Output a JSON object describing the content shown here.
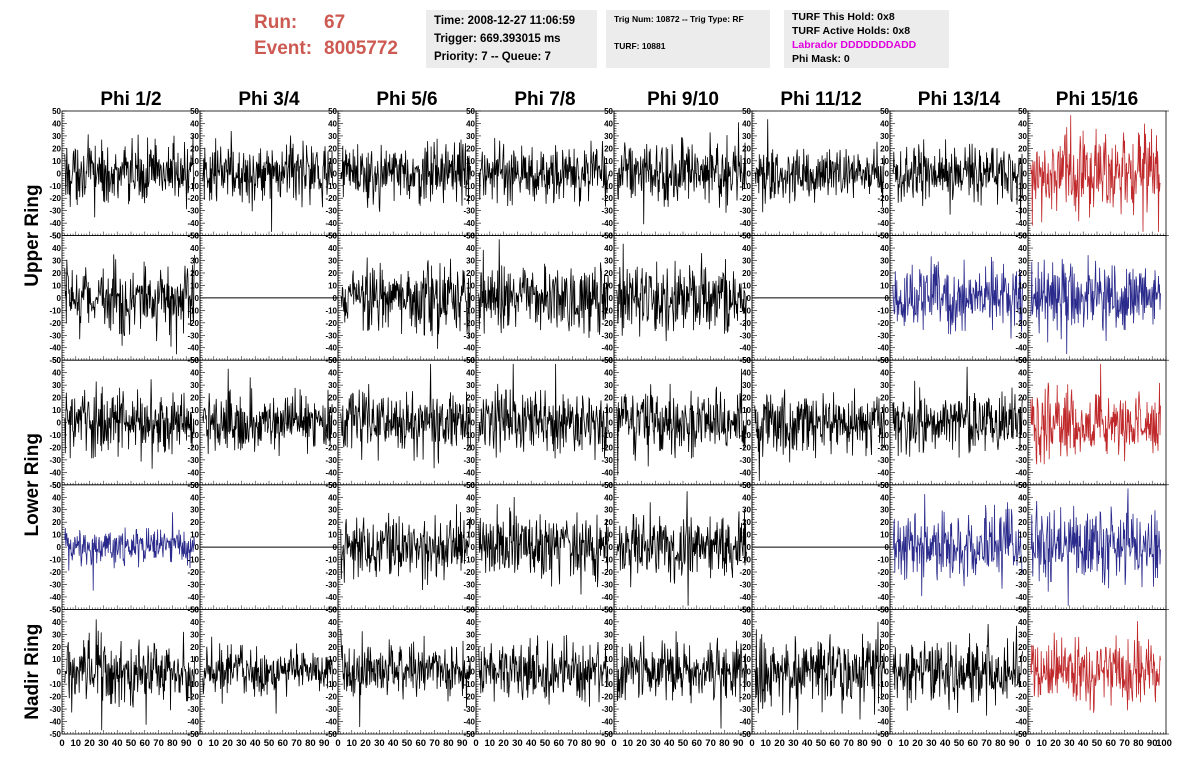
{
  "header": {
    "run_label": "Run:",
    "run_value": "67",
    "event_label": "Event:",
    "event_value": "8005772",
    "time_line": "Time: 2008-12-27 11:06:59",
    "trigger_line": "Trigger: 669.393015 ms",
    "priority_line": "Priority: 7 -- Queue: 7",
    "trig_line": "Trig Num: 10872 -- Trig Type: RF",
    "turf_line": "TURF: 10881",
    "turf_hold_line": "TURF This Hold: 0x8",
    "turf_active_line": "TURF Active Holds: 0x8",
    "labrador_line": "Labrador DDDDDDDADD",
    "phi_mask_line": "Phi Mask: 0"
  },
  "colors": {
    "run_text": "#cd5a52",
    "labrador_text": "#e000e0",
    "black_trace": "#000000",
    "red_trace": "#c0292b",
    "blue_trace": "#2a2a8c",
    "info_box_bg": "#ececec"
  },
  "chart_data": {
    "type": "line",
    "columns": [
      "Phi 1/2",
      "Phi 3/4",
      "Phi 5/6",
      "Phi 7/8",
      "Phi 9/10",
      "Phi 11/12",
      "Phi 13/14",
      "Phi 15/16"
    ],
    "row_labels": [
      {
        "label": "Upper Ring",
        "rows": [
          0,
          1
        ]
      },
      {
        "label": "Lower Ring",
        "rows": [
          2,
          3
        ]
      },
      {
        "label": "Nadir Ring",
        "rows": [
          4
        ]
      }
    ],
    "xlim": [
      0,
      100
    ],
    "ylim": [
      -50,
      50
    ],
    "x_ticks": [
      "0",
      "10",
      "20",
      "30",
      "40",
      "50",
      "60",
      "70",
      "80",
      "90"
    ],
    "x_last_tick": "100",
    "y_ticks": [
      "-50",
      "-40",
      "-30",
      "-20",
      "-10",
      "0",
      "10",
      "20",
      "30",
      "40",
      "50"
    ],
    "panels": [
      [
        {
          "color": "black",
          "amplitude": 16,
          "flat": false
        },
        {
          "color": "black",
          "amplitude": 15,
          "flat": false
        },
        {
          "color": "black",
          "amplitude": 15,
          "flat": false
        },
        {
          "color": "black",
          "amplitude": 15,
          "flat": false
        },
        {
          "color": "black",
          "amplitude": 17,
          "flat": false
        },
        {
          "color": "black",
          "amplitude": 13,
          "flat": false
        },
        {
          "color": "black",
          "amplitude": 14,
          "flat": false
        },
        {
          "color": "red",
          "amplitude": 20,
          "flat": false
        }
      ],
      [
        {
          "color": "black",
          "amplitude": 18,
          "flat": false
        },
        {
          "color": "black",
          "amplitude": 0,
          "flat": true
        },
        {
          "color": "black",
          "amplitude": 18,
          "flat": false
        },
        {
          "color": "black",
          "amplitude": 17,
          "flat": false
        },
        {
          "color": "black",
          "amplitude": 18,
          "flat": false
        },
        {
          "color": "black",
          "amplitude": 0,
          "flat": true
        },
        {
          "color": "blue",
          "amplitude": 17,
          "flat": false
        },
        {
          "color": "blue",
          "amplitude": 19,
          "flat": false
        }
      ],
      [
        {
          "color": "black",
          "amplitude": 17,
          "flat": false
        },
        {
          "color": "black",
          "amplitude": 15,
          "flat": false
        },
        {
          "color": "black",
          "amplitude": 16,
          "flat": false
        },
        {
          "color": "black",
          "amplitude": 17,
          "flat": false
        },
        {
          "color": "black",
          "amplitude": 17,
          "flat": false
        },
        {
          "color": "black",
          "amplitude": 16,
          "flat": false
        },
        {
          "color": "black",
          "amplitude": 16,
          "flat": false
        },
        {
          "color": "red",
          "amplitude": 17,
          "flat": false
        }
      ],
      [
        {
          "color": "blue",
          "amplitude": 10,
          "flat": false
        },
        {
          "color": "black",
          "amplitude": 0,
          "flat": true
        },
        {
          "color": "black",
          "amplitude": 17,
          "flat": false
        },
        {
          "color": "black",
          "amplitude": 19,
          "flat": false
        },
        {
          "color": "black",
          "amplitude": 17,
          "flat": false
        },
        {
          "color": "black",
          "amplitude": 0,
          "flat": true
        },
        {
          "color": "blue",
          "amplitude": 16,
          "flat": false
        },
        {
          "color": "blue",
          "amplitude": 20,
          "flat": false
        }
      ],
      [
        {
          "color": "black",
          "amplitude": 17,
          "flat": false
        },
        {
          "color": "black",
          "amplitude": 12,
          "flat": false
        },
        {
          "color": "black",
          "amplitude": 14,
          "flat": false
        },
        {
          "color": "black",
          "amplitude": 15,
          "flat": false
        },
        {
          "color": "black",
          "amplitude": 15,
          "flat": false
        },
        {
          "color": "black",
          "amplitude": 20,
          "flat": false
        },
        {
          "color": "black",
          "amplitude": 17,
          "flat": false
        },
        {
          "color": "red",
          "amplitude": 18,
          "flat": false
        }
      ]
    ]
  }
}
